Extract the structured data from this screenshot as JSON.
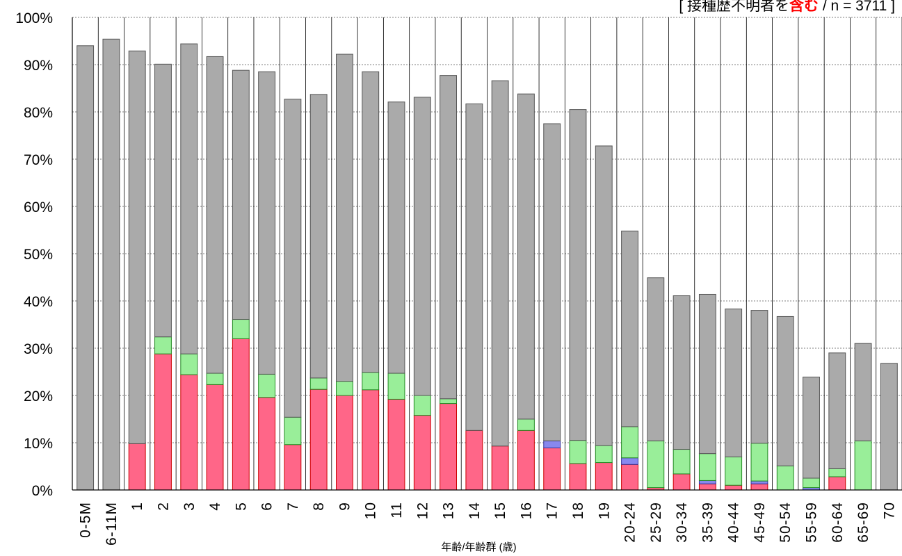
{
  "chart_data": {
    "type": "bar",
    "stacked": true,
    "subtitle": {
      "prefix": "[ 接種歴不明者を",
      "highlight": "含む",
      "suffix": " / n = 3711 ]"
    },
    "xlabel": "年齢/年齢群 (歳)",
    "ylabel": "",
    "ylim": [
      0,
      100
    ],
    "yticks": [
      "0%",
      "10%",
      "20%",
      "30%",
      "40%",
      "50%",
      "60%",
      "70%",
      "80%",
      "90%",
      "100%"
    ],
    "grid": true,
    "categories": [
      "0-5M",
      "6-11M",
      "1",
      "2",
      "3",
      "4",
      "5",
      "6",
      "7",
      "8",
      "9",
      "10",
      "11",
      "12",
      "13",
      "14",
      "15",
      "16",
      "17",
      "18",
      "19",
      "20-24",
      "25-29",
      "30-34",
      "35-39",
      "40-44",
      "45-49",
      "50-54",
      "55-59",
      "60-64",
      "65-69",
      "70"
    ],
    "series": [
      {
        "color": "#ff6688",
        "stroke": "#cc0000",
        "values": [
          0,
          0,
          9.8,
          28.8,
          24.4,
          22.3,
          32.0,
          19.6,
          9.6,
          21.3,
          20.0,
          21.2,
          19.2,
          15.8,
          18.3,
          12.6,
          9.3,
          12.6,
          8.9,
          5.6,
          5.8,
          5.4,
          0.5,
          3.4,
          1.3,
          1.0,
          1.3,
          0,
          0,
          2.8,
          0,
          0
        ]
      },
      {
        "color": "#8888ee",
        "stroke": "#333399",
        "values": [
          0,
          0,
          0,
          0,
          0,
          0,
          0,
          0,
          0,
          0,
          0,
          0,
          0,
          0,
          0,
          0,
          0,
          0,
          1.5,
          0,
          0,
          1.4,
          0,
          0,
          0.7,
          0,
          0.6,
          0,
          0.5,
          0,
          0,
          0
        ]
      },
      {
        "color": "#99ee99",
        "stroke": "#228822",
        "values": [
          0,
          0,
          0,
          3.6,
          4.4,
          2.4,
          4.1,
          4.9,
          5.8,
          2.4,
          3.0,
          3.7,
          5.5,
          4.2,
          1.0,
          0,
          0,
          2.4,
          0,
          4.9,
          3.6,
          6.6,
          9.9,
          5.2,
          5.7,
          6.0,
          8.0,
          5.1,
          2.0,
          1.7,
          10.4,
          0
        ]
      },
      {
        "color": "#aaaaaa",
        "stroke": "#555555",
        "values": [
          94.0,
          95.4,
          83.1,
          57.7,
          65.6,
          67.0,
          52.7,
          64.0,
          67.3,
          60.0,
          69.2,
          63.6,
          57.4,
          63.1,
          68.4,
          69.1,
          77.3,
          68.8,
          67.1,
          70.0,
          63.4,
          41.4,
          34.5,
          32.5,
          33.7,
          31.3,
          28.1,
          31.6,
          21.4,
          24.5,
          20.6,
          26.8
        ]
      }
    ]
  }
}
